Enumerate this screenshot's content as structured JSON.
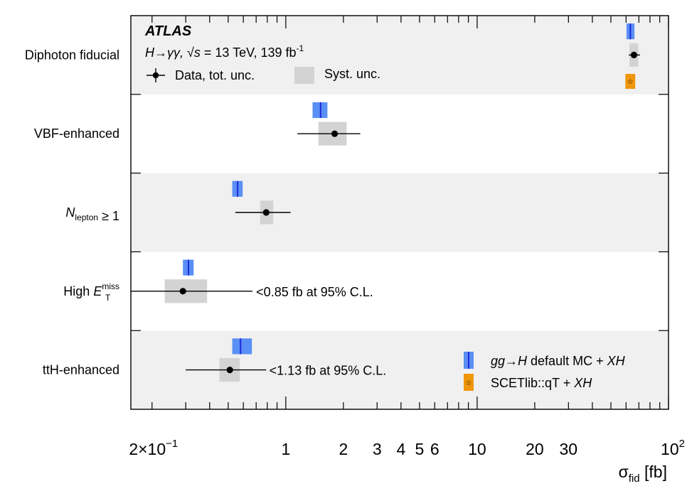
{
  "chart_data": {
    "type": "scatter",
    "xlabel_symbol": "σ",
    "xlabel_sub": "fid",
    "xlabel_unit": "[fb]",
    "xscale": "log",
    "xlim": [
      0.155,
      100
    ],
    "categories": [
      {
        "pre": "Diphoton fiducial"
      },
      {
        "pre": "VBF-enhanced"
      },
      {
        "pre": "",
        "main": "N",
        "sub": "lepton",
        "post": " ≥ 1"
      },
      {
        "pre": "High ",
        "main": "E",
        "sub": "T",
        "sup": "miss",
        "post": ""
      },
      {
        "pre": "ttH-enhanced"
      }
    ],
    "data": [
      {
        "value": 66,
        "tot_low": 62,
        "tot_high": 71,
        "syst_low": 62.5,
        "syst_high": 69.5
      },
      {
        "value": 1.8,
        "tot_low": 1.15,
        "tot_high": 2.45,
        "syst_low": 1.48,
        "syst_high": 2.08
      },
      {
        "value": 0.79,
        "tot_low": 0.545,
        "tot_high": 1.06,
        "syst_low": 0.735,
        "syst_high": 0.86
      },
      {
        "value": 0.29,
        "tot_low": 0.155,
        "tot_high": 0.67,
        "syst_low": 0.233,
        "syst_high": 0.388
      },
      {
        "value": 0.51,
        "tot_low": 0.3,
        "tot_high": 0.79,
        "syst_low": 0.45,
        "syst_high": 0.575
      }
    ],
    "mc_default": [
      {
        "value": 63.2,
        "low": 60.3,
        "high": 66.4
      },
      {
        "value": 1.52,
        "low": 1.38,
        "high": 1.65
      },
      {
        "value": 0.56,
        "low": 0.525,
        "high": 0.595
      },
      {
        "value": 0.31,
        "low": 0.29,
        "high": 0.33
      },
      {
        "value": 0.58,
        "low": 0.525,
        "high": 0.665
      }
    ],
    "scetlib": [
      {
        "value": 63.2,
        "low": 59.5,
        "high": 67.0
      },
      null,
      null,
      null,
      null
    ],
    "upper_limits": [
      null,
      null,
      null,
      {
        "x": 0.7,
        "text": "<0.85 fb at 95% C.L."
      },
      {
        "x": 0.82,
        "text": "<1.13 fb at 95% C.L."
      }
    ],
    "tick_labels": [
      {
        "value": 0.2,
        "mant": "2",
        "times": "×",
        "base": "10",
        "exp": "−1"
      },
      {
        "value": 1,
        "text": "1"
      },
      {
        "value": 2,
        "text": "2"
      },
      {
        "value": 3,
        "text": "3"
      },
      {
        "value": 4,
        "text": "4"
      },
      {
        "value": 5,
        "text": "5"
      },
      {
        "value": 6,
        "text": "6"
      },
      {
        "value": 10,
        "text": "10"
      },
      {
        "value": 20,
        "text": "20"
      },
      {
        "value": 30,
        "text": "30"
      },
      {
        "value": 100,
        "base": "10",
        "exp": "2"
      }
    ],
    "annotations": {
      "experiment": "ATLAS",
      "process": "H→γγ, ",
      "sqrt": "√",
      "sqrt_arg": "s",
      "energy": " = 13 TeV, 139 fb",
      "lumi_exp": "-1"
    },
    "legend": {
      "data": "Data, tot. unc.",
      "syst": "Syst. unc.",
      "mc_default": {
        "italic1": "gg→H",
        "text": " default MC + ",
        "italic2": "XH"
      },
      "scetlib": {
        "text": "SCETlib::qT + ",
        "italic2": "XH"
      }
    },
    "colors": {
      "band": "#f0f0f0",
      "syst": "#d3d3d3",
      "mc_fill": "#5a8ff5",
      "mc_line": "#1e2ad8",
      "scet_fill": "#f0960a",
      "marker": "#000000"
    }
  }
}
